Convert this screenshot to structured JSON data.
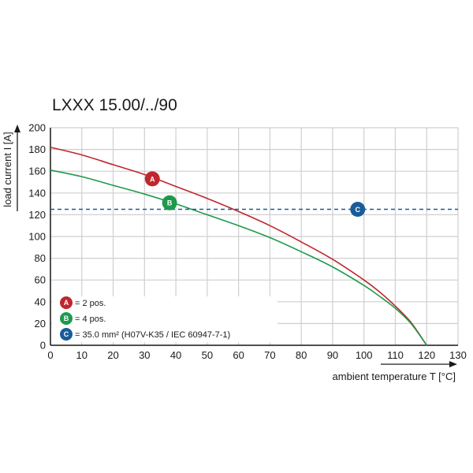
{
  "chart_data": {
    "type": "line",
    "title": "LXXX 15.00/../90",
    "xlabel": "ambient temperature T [°C]",
    "ylabel": "load current I [A]",
    "xlim": [
      0,
      130
    ],
    "ylim": [
      0,
      200
    ],
    "x_ticks": [
      0,
      10,
      20,
      30,
      40,
      50,
      60,
      70,
      80,
      90,
      100,
      110,
      120,
      130
    ],
    "y_ticks": [
      0,
      20,
      40,
      60,
      80,
      100,
      120,
      140,
      160,
      180,
      200
    ],
    "grid": true,
    "legend_position": "bottom-left",
    "series": [
      {
        "marker": "A",
        "legend": "= 2 pos.",
        "color": "#c0262d",
        "x": [
          0,
          10,
          20,
          30,
          40,
          50,
          60,
          70,
          80,
          90,
          100,
          105,
          110,
          115,
          120
        ],
        "y": [
          182,
          175,
          166,
          157,
          146,
          135,
          123,
          110,
          95,
          79,
          60,
          49,
          36,
          21,
          0
        ]
      },
      {
        "marker": "B",
        "legend": "= 4 pos.",
        "color": "#1e9a4c",
        "x": [
          0,
          10,
          20,
          30,
          40,
          50,
          60,
          70,
          80,
          90,
          100,
          105,
          110,
          115,
          120
        ],
        "y": [
          161,
          155,
          147,
          139,
          130,
          120,
          110,
          99,
          86,
          72,
          55,
          45,
          34,
          20,
          0
        ]
      },
      {
        "marker": "C",
        "legend": "= 35.0 mm² (H07V-K35 / IEC 60947-7-1)",
        "color": "#1a5c99",
        "style": "dashed",
        "x": [
          0,
          130
        ],
        "y": [
          125,
          125
        ]
      }
    ],
    "markers": [
      {
        "letter": "A",
        "color": "#c0262d",
        "x": 32.5,
        "y": 153
      },
      {
        "letter": "B",
        "color": "#1e9a4c",
        "x": 38,
        "y": 131
      },
      {
        "letter": "C",
        "color": "#1a5c99",
        "x": 98,
        "y": 125
      }
    ]
  }
}
